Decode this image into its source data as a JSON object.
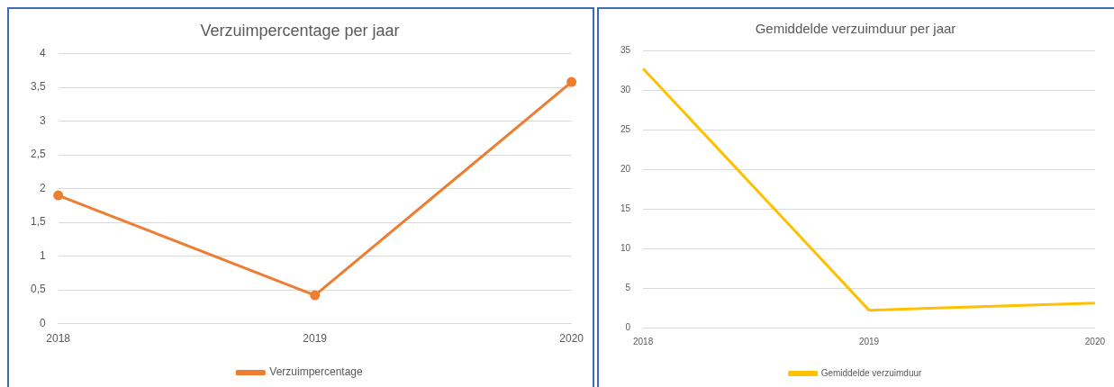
{
  "chart_data": [
    {
      "type": "line",
      "title": "Verzuimpercentage per jaar",
      "categories": [
        "2018",
        "2019",
        "2020"
      ],
      "series": [
        {
          "name": "Verzuimpercentage",
          "color": "#ed7d31",
          "values": [
            1.9,
            0.42,
            3.58
          ]
        }
      ],
      "ylim": [
        0,
        4
      ],
      "yticks": [
        0,
        {
          "value": 0.5,
          "label": "0,5"
        },
        1,
        {
          "value": 1.5,
          "label": "1,5"
        },
        2,
        {
          "value": 2.5,
          "label": "2,5"
        },
        3,
        {
          "value": 3.5,
          "label": "3,5"
        },
        4
      ],
      "grid": "y",
      "legend": "bottom",
      "marker": "circle"
    },
    {
      "type": "line",
      "title": "Gemiddelde verzuimduur per jaar",
      "categories": [
        "2018",
        "2019",
        "2020"
      ],
      "series": [
        {
          "name": "Gemiddelde verzuimduur",
          "color": "#ffc000",
          "values": [
            32.7,
            2.2,
            3.1
          ]
        }
      ],
      "ylim": [
        0,
        35
      ],
      "yticks": [
        0,
        5,
        10,
        15,
        20,
        25,
        30,
        35
      ],
      "grid": "y",
      "legend": "bottom",
      "marker": "none"
    }
  ]
}
